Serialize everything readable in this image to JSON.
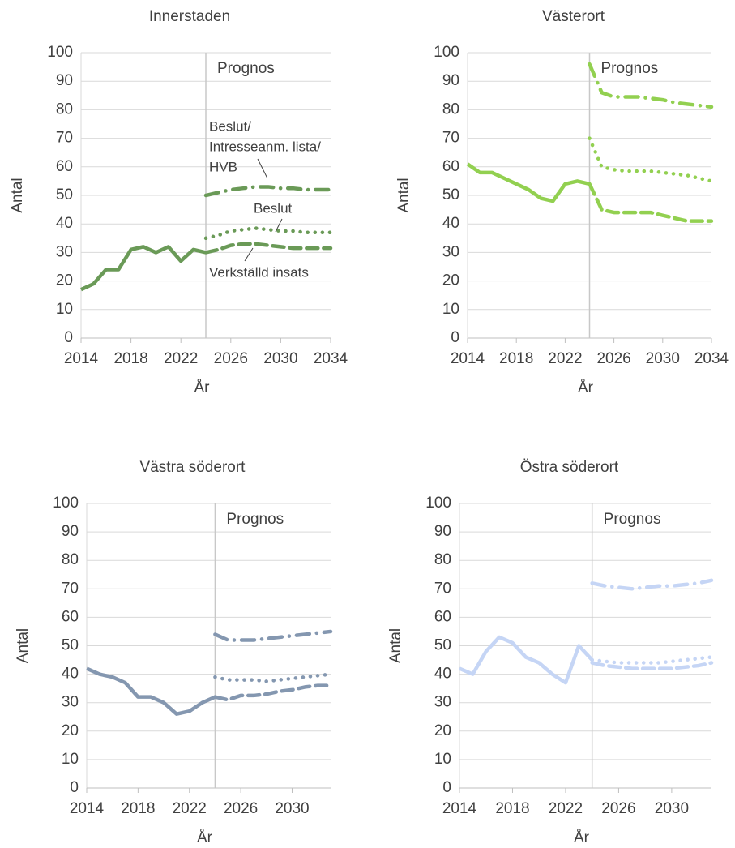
{
  "chart_data": [
    {
      "type": "line",
      "title": "Innerstaden",
      "x_label": "År",
      "y_label": "Antal",
      "annotation": "Prognos",
      "vline": 2024,
      "xlim": [
        2014,
        2034
      ],
      "xticks": [
        2014,
        2018,
        2022,
        2026,
        2030,
        2034
      ],
      "ylim": [
        0,
        100
      ],
      "yticks": [
        0,
        10,
        20,
        30,
        40,
        50,
        60,
        70,
        80,
        90,
        100
      ],
      "grid": true,
      "annotations": [
        [
          "Beslut/",
          "Intresseanm. lista/",
          "HVB"
        ],
        [
          "Beslut"
        ],
        [
          "Verkställd insats"
        ]
      ],
      "series": [
        {
          "color": "#6a9a57",
          "style": "solid",
          "x": [
            2014,
            2015,
            2016,
            2017,
            2018,
            2019,
            2020,
            2021,
            2022,
            2023,
            2024
          ],
          "values": [
            17,
            19,
            24,
            24,
            31,
            32,
            30,
            32,
            27,
            31,
            30
          ]
        },
        {
          "color": "#6a9a57",
          "style": "dashed",
          "x": [
            2024,
            2025,
            2026,
            2027,
            2028,
            2029,
            2030,
            2031,
            2032,
            2033,
            2034
          ],
          "values": [
            30,
            31,
            32.5,
            33,
            33,
            32.5,
            32,
            31.5,
            31.5,
            31.5,
            31.5
          ]
        },
        {
          "color": "#6a9a57",
          "style": "dotted",
          "x": [
            2024,
            2025,
            2026,
            2027,
            2028,
            2029,
            2030,
            2031,
            2032,
            2033,
            2034
          ],
          "values": [
            35,
            36,
            37.5,
            38,
            38.5,
            38,
            37.5,
            37.5,
            37,
            37,
            37
          ]
        },
        {
          "color": "#6a9a57",
          "style": "dashdot",
          "x": [
            2024,
            2025,
            2026,
            2027,
            2028,
            2029,
            2030,
            2031,
            2032,
            2033,
            2034
          ],
          "values": [
            50,
            51,
            52,
            52.5,
            53,
            53,
            52.5,
            52.5,
            52,
            52,
            52
          ]
        }
      ]
    },
    {
      "type": "line",
      "title": "Västerort",
      "x_label": "År",
      "y_label": "Antal",
      "annotation": "Prognos",
      "vline": 2024,
      "xlim": [
        2014,
        2034
      ],
      "xticks": [
        2014,
        2018,
        2022,
        2026,
        2030,
        2034
      ],
      "ylim": [
        0,
        100
      ],
      "yticks": [
        0,
        10,
        20,
        30,
        40,
        50,
        60,
        70,
        80,
        90,
        100
      ],
      "grid": true,
      "series": [
        {
          "color": "#92d050",
          "style": "solid",
          "x": [
            2014,
            2015,
            2016,
            2017,
            2018,
            2019,
            2020,
            2021,
            2022,
            2023,
            2024
          ],
          "values": [
            61,
            58,
            58,
            56,
            54,
            52,
            49,
            48,
            54,
            55,
            54
          ]
        },
        {
          "color": "#92d050",
          "style": "dashed",
          "x": [
            2024,
            2025,
            2026,
            2027,
            2028,
            2029,
            2030,
            2031,
            2032,
            2033,
            2034
          ],
          "values": [
            54,
            45,
            44,
            44,
            44,
            44,
            43,
            42,
            41,
            41,
            41
          ]
        },
        {
          "color": "#92d050",
          "style": "dotted",
          "x": [
            2024,
            2025,
            2026,
            2027,
            2028,
            2029,
            2030,
            2031,
            2032,
            2033,
            2034
          ],
          "values": [
            70,
            60,
            59,
            58.5,
            58.5,
            58.5,
            58,
            57.5,
            57,
            56,
            55
          ]
        },
        {
          "color": "#92d050",
          "style": "dashdot",
          "x": [
            2024,
            2025,
            2026,
            2027,
            2028,
            2029,
            2030,
            2031,
            2032,
            2033,
            2034
          ],
          "values": [
            96,
            86,
            84.5,
            84.5,
            84.5,
            84,
            83.5,
            82.5,
            82,
            81.5,
            81
          ]
        }
      ]
    },
    {
      "type": "line",
      "title": "Västra söderort",
      "x_label": "År",
      "y_label": "Antal",
      "annotation": "Prognos",
      "vline": 2024,
      "xlim": [
        2014,
        2033
      ],
      "xticks": [
        2014,
        2018,
        2022,
        2026,
        2030
      ],
      "ylim": [
        0,
        100
      ],
      "yticks": [
        0,
        10,
        20,
        30,
        40,
        50,
        60,
        70,
        80,
        90,
        100
      ],
      "grid": true,
      "series": [
        {
          "color": "#8497b0",
          "style": "solid",
          "x": [
            2014,
            2015,
            2016,
            2017,
            2018,
            2019,
            2020,
            2021,
            2022,
            2023,
            2024
          ],
          "values": [
            42,
            40,
            39,
            37,
            32,
            32,
            30,
            26,
            27,
            30,
            32
          ]
        },
        {
          "color": "#8497b0",
          "style": "dashed",
          "x": [
            2024,
            2025,
            2026,
            2027,
            2028,
            2029,
            2030,
            2031,
            2032,
            2033
          ],
          "values": [
            32,
            31,
            32.5,
            32.5,
            33,
            34,
            34.5,
            35.5,
            36,
            36
          ]
        },
        {
          "color": "#8497b0",
          "style": "dotted",
          "x": [
            2024,
            2025,
            2026,
            2027,
            2028,
            2029,
            2030,
            2031,
            2032,
            2033
          ],
          "values": [
            39,
            38,
            38,
            38,
            37.5,
            38,
            38.5,
            39,
            39.5,
            40
          ]
        },
        {
          "color": "#8497b0",
          "style": "dashdot",
          "x": [
            2024,
            2025,
            2026,
            2027,
            2028,
            2029,
            2030,
            2031,
            2032,
            2033
          ],
          "values": [
            54,
            52,
            52,
            52,
            52.5,
            53,
            53.5,
            54,
            54.5,
            55
          ]
        }
      ]
    },
    {
      "type": "line",
      "title": "Östra söderort",
      "x_label": "År",
      "y_label": "Antal",
      "annotation": "Prognos",
      "vline": 2024,
      "xlim": [
        2014,
        2033
      ],
      "xticks": [
        2014,
        2018,
        2022,
        2026,
        2030
      ],
      "ylim": [
        0,
        100
      ],
      "yticks": [
        0,
        10,
        20,
        30,
        40,
        50,
        60,
        70,
        80,
        90,
        100
      ],
      "grid": true,
      "series": [
        {
          "color": "#c5d5f5",
          "style": "solid",
          "x": [
            2014,
            2015,
            2016,
            2017,
            2018,
            2019,
            2020,
            2021,
            2022,
            2023,
            2024
          ],
          "values": [
            42,
            40,
            48,
            53,
            51,
            46,
            44,
            40,
            37,
            50,
            45
          ]
        },
        {
          "color": "#c5d5f5",
          "style": "dashed",
          "x": [
            2024,
            2025,
            2026,
            2027,
            2028,
            2029,
            2030,
            2031,
            2032,
            2033
          ],
          "values": [
            44,
            43,
            42.5,
            42,
            42,
            42,
            42,
            42.5,
            43,
            44
          ]
        },
        {
          "color": "#c5d5f5",
          "style": "dotted",
          "x": [
            2024,
            2025,
            2026,
            2027,
            2028,
            2029,
            2030,
            2031,
            2032,
            2033
          ],
          "values": [
            45,
            44.5,
            44,
            44,
            44,
            44,
            44.5,
            45,
            45.5,
            46
          ]
        },
        {
          "color": "#c5d5f5",
          "style": "dashdot",
          "x": [
            2024,
            2025,
            2026,
            2027,
            2028,
            2029,
            2030,
            2031,
            2032,
            2033
          ],
          "values": [
            72,
            71,
            70.5,
            70,
            70.5,
            71,
            71,
            71.5,
            72,
            73
          ]
        }
      ]
    }
  ]
}
